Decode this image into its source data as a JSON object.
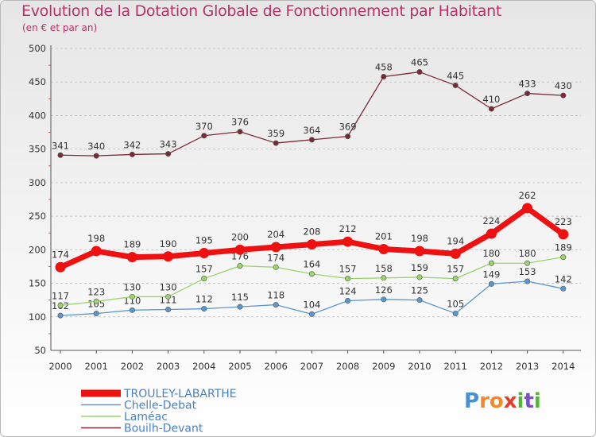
{
  "title": "Evolution de la Dotation Globale de Fonctionnement par Habitant",
  "subtitle": "(en € et par an)",
  "logo": {
    "text": "Proxiti",
    "letters": [
      "P",
      "r",
      "o",
      "x",
      "i",
      "t",
      "i"
    ],
    "colors": [
      "#4a8fd6",
      "#f08a2a",
      "#f08a2a",
      "#e53b2a",
      "#55b53a",
      "#7a4fc6",
      "#55b53a"
    ]
  },
  "chart_data": {
    "type": "line",
    "title": "Evolution de la Dotation Globale de Fonctionnement par Habitant",
    "ylabel": "(en € et par an)",
    "xlabel": "",
    "x": [
      "2000",
      "2001",
      "2002",
      "2003",
      "2004",
      "2005",
      "2006",
      "2007",
      "2008",
      "2009",
      "2010",
      "2011",
      "2012",
      "2013",
      "2014"
    ],
    "ylim": [
      50,
      500
    ],
    "yticks": [
      "50",
      "100",
      "150",
      "200",
      "250",
      "300",
      "350",
      "400",
      "450",
      "500"
    ],
    "grid": "horizontal dashed",
    "legend_position": "bottom-left",
    "series": [
      {
        "name": "Bouilh-Devant",
        "color": "#7a2a35",
        "values": [
          341,
          340,
          342,
          343,
          370,
          376,
          359,
          364,
          369,
          458,
          465,
          445,
          410,
          433,
          430
        ]
      },
      {
        "name": "Chelle-Debat",
        "color": "#5a97cf",
        "values": [
          102,
          105,
          110,
          111,
          112,
          115,
          118,
          104,
          124,
          126,
          125,
          105,
          149,
          153,
          142
        ]
      },
      {
        "name": "Laméac",
        "color": "#9ad46a",
        "values": [
          117,
          123,
          130,
          130,
          157,
          176,
          174,
          164,
          157,
          158,
          159,
          157,
          180,
          180,
          189
        ]
      },
      {
        "name": "TROULEY-LABARTHE",
        "color": "#ee1111",
        "values": [
          174,
          198,
          189,
          190,
          195,
          200,
          204,
          208,
          212,
          201,
          198,
          194,
          224,
          262,
          223
        ]
      }
    ],
    "legend_order": [
      "TROULEY-LABARTHE",
      "Chelle-Debat",
      "Laméac",
      "Bouilh-Devant"
    ]
  }
}
